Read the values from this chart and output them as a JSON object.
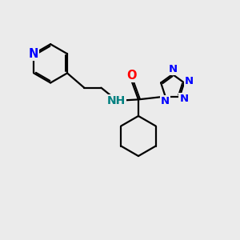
{
  "bg_color": "#ebebeb",
  "bond_color": "#000000",
  "N_color": "#0000ff",
  "O_color": "#ff0000",
  "NH_color": "#008080",
  "line_width": 1.6,
  "font_size": 10.5,
  "xlim": [
    0,
    10
  ],
  "ylim": [
    0,
    10
  ]
}
